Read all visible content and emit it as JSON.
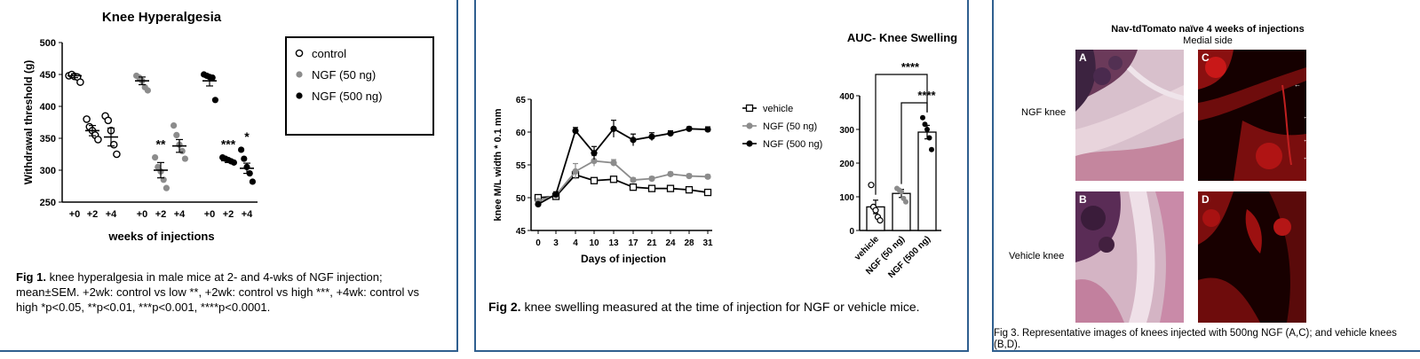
{
  "fig1": {
    "caption_label": "Fig 1.",
    "caption_text": " knee hyperalgesia in male mice at 2- and 4-wks of NGF injection; mean±SEM. +2wk: control vs low **, +2wk: control vs high ***, +4wk: control vs high *p<0.05, **p<0.01, ***p<0.001, ****p<0.0001."
  },
  "fig2": {
    "caption_label": "Fig 2.",
    "caption_text": " knee swelling measured at the time of injection for NGF or vehicle mice."
  },
  "fig3": {
    "title": "Nav-tdTomato naïve 4 weeks of injections",
    "subtitle": "Medial side",
    "row_labels": [
      "NGF knee",
      "Vehicle knee"
    ],
    "panel_letters": [
      "A",
      "C",
      "B",
      "D"
    ],
    "caption": "Fig 3. Representative images of knees injected with 500ng NGF (A,C); and vehicle knees (B,D)."
  },
  "colors": {
    "border": "#2f5f8f",
    "control": "#ffffff",
    "ngf_low": "#8c8c8c",
    "ngf_high": "#000000"
  },
  "chart_data": [
    {
      "type": "scatter",
      "title": "Knee Hyperalgesia",
      "xlabel": "weeks of injections",
      "ylabel": "Withdrawal threshold (g)",
      "ylim": [
        250,
        500
      ],
      "yticks": [
        250,
        300,
        350,
        400,
        450,
        500
      ],
      "categories": [
        "+0",
        "+2",
        "+4",
        "+0",
        "+2",
        "+4",
        "+0",
        "+2",
        "+4"
      ],
      "legend_position": "right",
      "significance": [
        {
          "category_index": 4,
          "label": "**"
        },
        {
          "category_index": 7,
          "label": "***"
        },
        {
          "category_index": 8,
          "label": "*"
        }
      ],
      "series": [
        {
          "name": "control",
          "color": "#ffffff",
          "category_indices": [
            0,
            1,
            2
          ],
          "means": [
            448,
            362,
            352
          ],
          "sem": [
            3,
            8,
            14
          ],
          "points": [
            [
              448,
              450,
              447,
              446,
              438
            ],
            [
              380,
              368,
              362,
              355,
              348
            ],
            [
              385,
              378,
              362,
              340,
              325
            ]
          ]
        },
        {
          "name": "NGF (50 ng)",
          "color": "#8c8c8c",
          "category_indices": [
            3,
            4,
            5
          ],
          "means": [
            440,
            300,
            338
          ],
          "sem": [
            6,
            12,
            10
          ],
          "points": [
            [
              448,
              445,
              440,
              430,
              425
            ],
            [
              320,
              305,
              298,
              285,
              272
            ],
            [
              370,
              355,
              340,
              330,
              318
            ]
          ]
        },
        {
          "name": "NGF (500 ng)",
          "color": "#000000",
          "category_indices": [
            6,
            7,
            8
          ],
          "means": [
            440,
            315,
            303
          ],
          "sem": [
            8,
            3,
            8
          ],
          "points": [
            [
              450,
              448,
              446,
              445,
              410
            ],
            [
              320,
              318,
              316,
              314,
              312
            ],
            [
              332,
              318,
              305,
              295,
              282
            ]
          ]
        }
      ]
    },
    {
      "type": "line",
      "xlabel": "Days of injection",
      "ylabel": "knee M/L width * 0.1 mm",
      "x": [
        0,
        3,
        4,
        10,
        13,
        17,
        21,
        24,
        28,
        31
      ],
      "ylim": [
        45,
        65
      ],
      "yticks": [
        45,
        50,
        55,
        60,
        65
      ],
      "legend_position": "right",
      "series": [
        {
          "name": "vehicle",
          "marker": "square-open",
          "values": [
            50.0,
            50.2,
            53.5,
            52.6,
            52.8,
            51.6,
            51.4,
            51.4,
            51.2,
            50.8
          ],
          "err": [
            0.3,
            0.3,
            0.4,
            0.3,
            0.3,
            0.3,
            0.2,
            0.2,
            0.2,
            0.3
          ]
        },
        {
          "name": "NGF (50 ng)",
          "marker": "circle-gray",
          "values": [
            49.5,
            50.4,
            54.0,
            55.6,
            55.3,
            52.7,
            52.9,
            53.6,
            53.3,
            53.2
          ],
          "err": [
            0.3,
            0.4,
            1.2,
            0.8,
            0.5,
            0.3,
            0.3,
            0.3,
            0.3,
            0.3
          ]
        },
        {
          "name": "NGF (500 ng)",
          "marker": "circle-black",
          "values": [
            49.0,
            50.5,
            60.2,
            56.8,
            60.5,
            58.8,
            59.3,
            59.8,
            60.5,
            60.4
          ],
          "err": [
            0.3,
            0.4,
            0.5,
            1.0,
            1.3,
            0.9,
            0.6,
            0.4,
            0.3,
            0.4
          ]
        }
      ]
    },
    {
      "type": "bar",
      "title": "AUC- Knee Swelling",
      "categories": [
        "vehicle",
        "NGF (50 ng)",
        "NGF (500 ng)"
      ],
      "values": [
        70,
        110,
        292
      ],
      "sem": [
        20,
        12,
        20
      ],
      "ylim": [
        0,
        400
      ],
      "yticks": [
        0,
        100,
        200,
        300,
        400
      ],
      "points": [
        [
          135,
          70,
          60,
          40,
          30
        ],
        [
          125,
          120,
          115,
          95,
          85
        ],
        [
          335,
          315,
          300,
          275,
          240
        ]
      ],
      "significance": [
        {
          "from": 0,
          "to": 2,
          "label": "****"
        },
        {
          "from": 1,
          "to": 2,
          "label": "****"
        }
      ]
    }
  ]
}
